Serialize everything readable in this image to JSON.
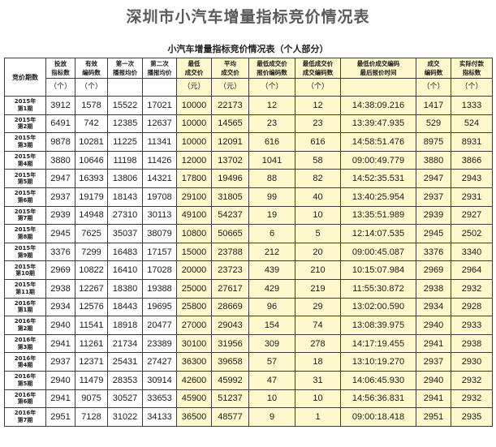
{
  "page_title": "深圳市小汽车增量指标竞价情况表",
  "table_title": "小汽车增量指标竞价情况表（个人部分）",
  "headers": {
    "period": "竞价期数",
    "bidders": [
      "投放",
      "指标数"
    ],
    "valid_codes": [
      "有效",
      "编码数"
    ],
    "first_avg": [
      "第一次",
      "播报均价"
    ],
    "second_avg": [
      "第二次",
      "播报均价"
    ],
    "min_price": [
      "最低",
      "成交价"
    ],
    "avg_price": [
      "平均",
      "成交价"
    ],
    "min_price_codes": [
      "最低成交价",
      "报价编码数"
    ],
    "min_price_deal_codes": [
      "最低成交价",
      "成交编码数"
    ],
    "min_last_time": [
      "最低价成交编码",
      "最后报价时间"
    ],
    "deal_codes": [
      "成交",
      "编码数"
    ],
    "paid": [
      "实际付款",
      "指标数"
    ]
  },
  "units": {
    "count": "（个）",
    "yuan": "（元）"
  },
  "rows": [
    {
      "year": "2015年",
      "no": "第1期",
      "bidders": "3912",
      "valid": "1578",
      "first": "15522",
      "second": "17021",
      "min": "10000",
      "avg": "22173",
      "min_codes": "12",
      "min_deal": "12",
      "time": "14:38:09.216",
      "deal": "1417",
      "paid": "1333"
    },
    {
      "year": "2015年",
      "no": "第2期",
      "bidders": "6491",
      "valid": "742",
      "first": "12385",
      "second": "12637",
      "min": "10000",
      "avg": "14565",
      "min_codes": "23",
      "min_deal": "23",
      "time": "13:39:47.935",
      "deal": "529",
      "paid": "524"
    },
    {
      "year": "2015年",
      "no": "第3期",
      "bidders": "9878",
      "valid": "10281",
      "first": "11225",
      "second": "11341",
      "min": "10000",
      "avg": "12091",
      "min_codes": "616",
      "min_deal": "616",
      "time": "14:58:51.476",
      "deal": "8975",
      "paid": "8931"
    },
    {
      "year": "2015年",
      "no": "第4期",
      "bidders": "3880",
      "valid": "10646",
      "first": "11198",
      "second": "11426",
      "min": "12000",
      "avg": "13702",
      "min_codes": "1041",
      "min_deal": "58",
      "time": "09:00:49.779",
      "deal": "3880",
      "paid": "3866"
    },
    {
      "year": "2015年",
      "no": "第5期",
      "bidders": "2947",
      "valid": "16393",
      "first": "13806",
      "second": "14321",
      "min": "17800",
      "avg": "19496",
      "min_codes": "88",
      "min_deal": "82",
      "time": "14:52:35.531",
      "deal": "2947",
      "paid": "2943"
    },
    {
      "year": "2015年",
      "no": "第6期",
      "bidders": "2937",
      "valid": "19179",
      "first": "18143",
      "second": "19708",
      "min": "29100",
      "avg": "31805",
      "min_codes": "99",
      "min_deal": "40",
      "time": "13:40:25.954",
      "deal": "2937",
      "paid": "2931"
    },
    {
      "year": "2015年",
      "no": "第7期",
      "bidders": "2939",
      "valid": "14948",
      "first": "27310",
      "second": "30113",
      "min": "49100",
      "avg": "54237",
      "min_codes": "19",
      "min_deal": "10",
      "time": "13:35:51.989",
      "deal": "2939",
      "paid": "2927"
    },
    {
      "year": "2015年",
      "no": "第8期",
      "bidders": "2945",
      "valid": "7625",
      "first": "35037",
      "second": "38079",
      "min": "10800",
      "avg": "50665",
      "min_codes": "6",
      "min_deal": "5",
      "time": "12:14:07.535",
      "deal": "2945",
      "paid": "2502"
    },
    {
      "year": "2015年",
      "no": "第9期",
      "bidders": "3376",
      "valid": "7299",
      "first": "16483",
      "second": "17157",
      "min": "15000",
      "avg": "23788",
      "min_codes": "212",
      "min_deal": "20",
      "time": "09:00:45.087",
      "deal": "3376",
      "paid": "3340"
    },
    {
      "year": "2015年",
      "no": "第10期",
      "bidders": "2969",
      "valid": "10822",
      "first": "16410",
      "second": "17028",
      "min": "20000",
      "avg": "23723",
      "min_codes": "439",
      "min_deal": "210",
      "time": "10:15:07.984",
      "deal": "2969",
      "paid": "2964"
    },
    {
      "year": "2015年",
      "no": "第11期",
      "bidders": "2938",
      "valid": "12267",
      "first": "18380",
      "second": "19388",
      "min": "25000",
      "avg": "27617",
      "min_codes": "429",
      "min_deal": "219",
      "time": "11:55:30.872",
      "deal": "2938",
      "paid": "2932"
    },
    {
      "year": "2016年",
      "no": "第1期",
      "bidders": "2934",
      "valid": "12576",
      "first": "18443",
      "second": "19695",
      "min": "25800",
      "avg": "28669",
      "min_codes": "96",
      "min_deal": "29",
      "time": "13:02:00.590",
      "deal": "2934",
      "paid": "2928"
    },
    {
      "year": "2016年",
      "no": "第2期",
      "bidders": "2940",
      "valid": "11541",
      "first": "18918",
      "second": "20477",
      "min": "27000",
      "avg": "29043",
      "min_codes": "154",
      "min_deal": "74",
      "time": "13:08:39.975",
      "deal": "2940",
      "paid": "2933"
    },
    {
      "year": "2016年",
      "no": "第3期",
      "bidders": "2941",
      "valid": "11261",
      "first": "21734",
      "second": "23389",
      "min": "30100",
      "avg": "31956",
      "min_codes": "309",
      "min_deal": "278",
      "time": "14:17:19.455",
      "deal": "2941",
      "paid": "2938"
    },
    {
      "year": "2016年",
      "no": "第4期",
      "bidders": "2937",
      "valid": "12371",
      "first": "25431",
      "second": "27427",
      "min": "36300",
      "avg": "39658",
      "min_codes": "57",
      "min_deal": "18",
      "time": "13:10:19.270",
      "deal": "2937",
      "paid": "2930"
    },
    {
      "year": "2016年",
      "no": "第5期",
      "bidders": "2940",
      "valid": "11479",
      "first": "28353",
      "second": "30914",
      "min": "42600",
      "avg": "45992",
      "min_codes": "47",
      "min_deal": "31",
      "time": "14:06:45.930",
      "deal": "2940",
      "paid": "2932"
    },
    {
      "year": "2016年",
      "no": "第6期",
      "bidders": "2941",
      "valid": "9075",
      "first": "30527",
      "second": "33653",
      "min": "45900",
      "avg": "51237",
      "min_codes": "10",
      "min_deal": "10",
      "time": "14:56:36.831",
      "deal": "2941",
      "paid": "2932"
    },
    {
      "year": "2016年",
      "no": "第7期",
      "bidders": "2951",
      "valid": "7128",
      "first": "31022",
      "second": "34133",
      "min": "36500",
      "avg": "48577",
      "min_codes": "9",
      "min_deal": "1",
      "time": "09:00:18.418",
      "deal": "2951",
      "paid": "2935"
    }
  ]
}
